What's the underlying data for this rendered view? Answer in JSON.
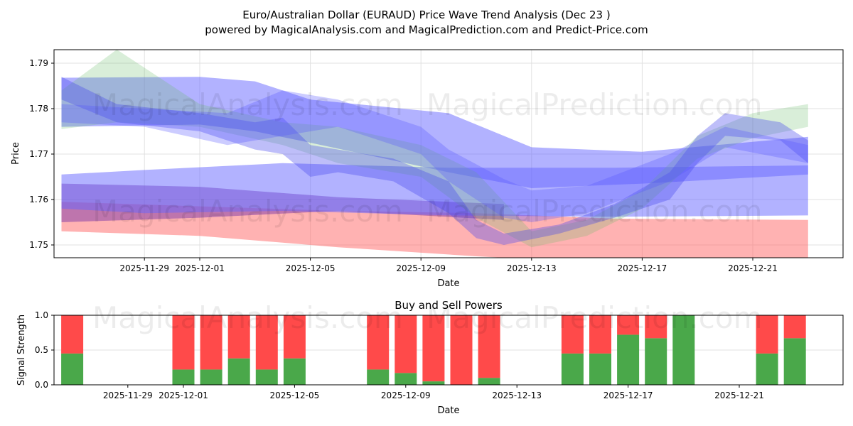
{
  "title": "Euro/Australian Dollar (EURAUD) Price Wave Trend Analysis (Dec 23 )",
  "subtitle": "powered by MagicalAnalysis.com and MagicalPrediction.com and Predict-Price.com",
  "watermark": [
    "MagicalAnalysis.com",
    "MagicalPrediction.com"
  ],
  "chart_data": [
    {
      "type": "area",
      "title": "",
      "xlabel": "Date",
      "ylabel": "Price",
      "ylim": [
        1.747,
        1.7935
      ],
      "yticks": [
        "1.75",
        "1.76",
        "1.77",
        "1.78",
        "1.79"
      ],
      "xticks": [
        "2025-11-29",
        "2025-12-01",
        "2025-12-05",
        "2025-12-09",
        "2025-12-13",
        "2025-12-17",
        "2025-12-21"
      ],
      "x_start": "2025-11-26",
      "bands": [
        {
          "name": "red band",
          "color": "#ff6666",
          "opacity": 0.5,
          "days": [
            0,
            5,
            10,
            15,
            20,
            27
          ],
          "upper": [
            1.7595,
            1.7585,
            1.7575,
            1.757,
            1.7558,
            1.7555
          ],
          "lower": [
            1.753,
            1.752,
            1.7495,
            1.7475,
            1.746,
            1.7455
          ]
        },
        {
          "name": "purple band",
          "color": "#8844aa",
          "opacity": 0.55,
          "days": [
            0,
            5,
            10,
            16
          ],
          "upper": [
            1.7635,
            1.7628,
            1.7605,
            1.759
          ],
          "lower": [
            1.755,
            1.756,
            1.7575,
            1.7555
          ]
        },
        {
          "name": "blue wide low band",
          "color": "#6666ff",
          "opacity": 0.5,
          "days": [
            0,
            3,
            8,
            14,
            20,
            27
          ],
          "upper": [
            1.7655,
            1.7665,
            1.768,
            1.767,
            1.767,
            1.7675
          ],
          "lower": [
            1.758,
            1.757,
            1.7575,
            1.7565,
            1.7562,
            1.7565
          ]
        },
        {
          "name": "blue wide high band",
          "color": "#6666ff",
          "opacity": 0.5,
          "days": [
            0,
            5,
            7,
            9,
            14,
            17,
            21,
            27
          ],
          "upper": [
            1.7868,
            1.787,
            1.786,
            1.782,
            1.779,
            1.7715,
            1.7705,
            1.7738
          ],
          "lower": [
            1.776,
            1.7765,
            1.775,
            1.7725,
            1.766,
            1.7625,
            1.7635,
            1.7655
          ]
        },
        {
          "name": "green wave",
          "color": "#66bb66",
          "opacity": 0.25,
          "days": [
            0,
            2,
            5,
            8,
            10,
            13,
            15,
            17,
            19,
            21,
            23,
            25,
            27
          ],
          "upper": [
            1.784,
            1.793,
            1.781,
            1.777,
            1.776,
            1.772,
            1.766,
            1.753,
            1.7555,
            1.762,
            1.774,
            1.779,
            1.781
          ],
          "lower": [
            1.7755,
            1.777,
            1.776,
            1.772,
            1.768,
            1.765,
            1.756,
            1.7495,
            1.752,
            1.758,
            1.769,
            1.7735,
            1.776
          ]
        },
        {
          "name": "blue wave 1",
          "color": "#4444ee",
          "opacity": 0.35,
          "days": [
            0,
            2,
            5,
            7,
            8,
            9,
            10,
            12,
            14,
            15,
            16,
            18,
            20,
            22,
            23,
            24,
            26,
            27
          ],
          "upper": [
            1.787,
            1.781,
            1.779,
            1.777,
            1.778,
            1.772,
            1.771,
            1.769,
            1.764,
            1.7555,
            1.7525,
            1.7545,
            1.759,
            1.766,
            1.774,
            1.779,
            1.777,
            1.773
          ],
          "lower": [
            1.782,
            1.777,
            1.775,
            1.771,
            1.77,
            1.765,
            1.766,
            1.764,
            1.757,
            1.7515,
            1.75,
            1.7525,
            1.756,
            1.76,
            1.768,
            1.774,
            1.773,
            1.768
          ]
        },
        {
          "name": "blue wave 2",
          "color": "#5555ff",
          "opacity": 0.3,
          "days": [
            0,
            3,
            6,
            8,
            10,
            13,
            14,
            16,
            17,
            19,
            22,
            24,
            27
          ],
          "upper": [
            1.781,
            1.78,
            1.779,
            1.784,
            1.782,
            1.776,
            1.771,
            1.7645,
            1.762,
            1.763,
            1.77,
            1.776,
            1.772
          ],
          "lower": [
            1.777,
            1.776,
            1.772,
            1.774,
            1.776,
            1.77,
            1.764,
            1.756,
            1.755,
            1.757,
            1.764,
            1.7715,
            1.768
          ]
        }
      ]
    },
    {
      "type": "bar",
      "title": "Buy and Sell Powers",
      "xlabel": "Date",
      "ylabel": "Signal Strength",
      "ylim": [
        0,
        1.0
      ],
      "yticks": [
        "0.0",
        "0.5",
        "1.0"
      ],
      "xticks": [
        "2025-11-29",
        "2025-12-01",
        "2025-12-05",
        "2025-12-09",
        "2025-12-13",
        "2025-12-17",
        "2025-12-21"
      ],
      "categories": [
        "2025-11-27",
        "2025-12-01",
        "2025-12-02",
        "2025-12-03",
        "2025-12-04",
        "2025-12-05",
        "2025-12-08",
        "2025-12-09",
        "2025-12-10",
        "2025-12-11",
        "2025-12-12",
        "2025-12-15",
        "2025-12-16",
        "2025-12-17",
        "2025-12-18",
        "2025-12-19",
        "2025-12-22",
        "2025-12-23"
      ],
      "day_index": [
        1,
        5,
        6,
        7,
        8,
        9,
        12,
        13,
        14,
        15,
        16,
        19,
        20,
        21,
        22,
        23,
        26,
        27
      ],
      "series": [
        {
          "name": "Buy",
          "color": "#4aa84a",
          "values": [
            0.45,
            0.22,
            0.22,
            0.38,
            0.22,
            0.38,
            0.22,
            0.17,
            0.05,
            0.0,
            0.1,
            0.45,
            0.45,
            0.72,
            0.67,
            1.0,
            0.45,
            0.67
          ]
        },
        {
          "name": "Sell",
          "color": "#ff4a4a",
          "values": [
            0.55,
            0.78,
            0.78,
            0.62,
            0.78,
            0.62,
            0.78,
            0.83,
            0.95,
            1.0,
            0.9,
            0.55,
            0.55,
            0.28,
            0.33,
            0.0,
            0.55,
            0.33
          ]
        }
      ]
    }
  ]
}
